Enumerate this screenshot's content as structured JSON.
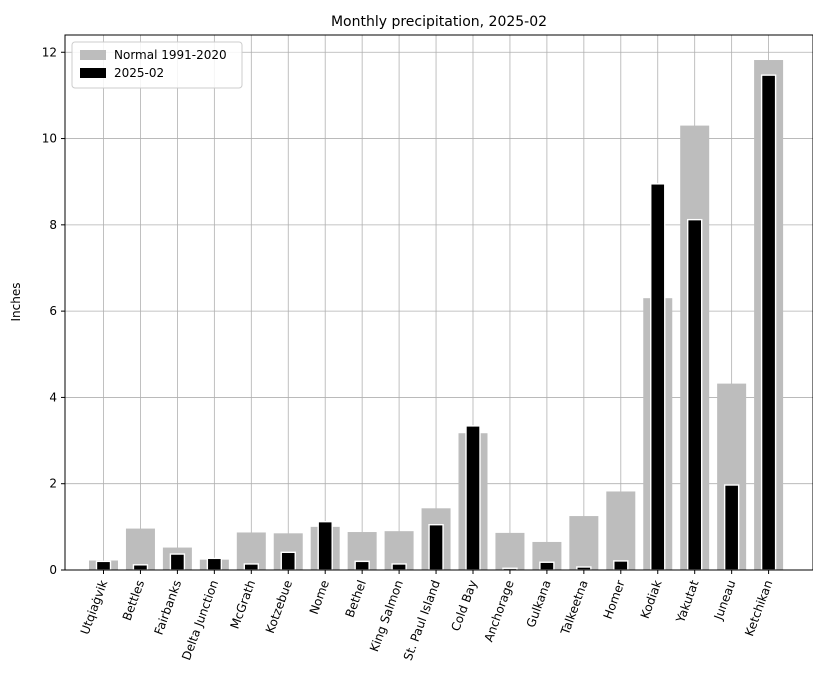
{
  "chart_data": {
    "type": "bar",
    "title": "Monthly precipitation, 2025-02",
    "ylabel": "Inches",
    "xlabel": "",
    "ylim": [
      0,
      12.4
    ],
    "yticks": [
      0,
      2,
      4,
      6,
      8,
      10,
      12
    ],
    "grid": true,
    "legend_position": "top-left",
    "categories": [
      "Utqiaġvik",
      "Bettles",
      "Fairbanks",
      "Delta Junction",
      "McGrath",
      "Kotzebue",
      "Nome",
      "Bethel",
      "King Salmon",
      "St. Paul Island",
      "Cold Bay",
      "Anchorage",
      "Gulkana",
      "Talkeetna",
      "Homer",
      "Kodiak",
      "Yakutat",
      "Juneau",
      "Ketchikan"
    ],
    "series": [
      {
        "name": "Normal 1991-2020",
        "color": "#bdbdbd",
        "values": [
          0.22,
          0.96,
          0.52,
          0.24,
          0.87,
          0.85,
          1.0,
          0.88,
          0.9,
          1.43,
          3.17,
          0.86,
          0.65,
          1.25,
          1.82,
          6.3,
          10.3,
          4.32,
          11.82
        ]
      },
      {
        "name": "2025-02",
        "color": "#000000",
        "values": [
          0.2,
          0.12,
          0.37,
          0.27,
          0.14,
          0.41,
          1.12,
          0.2,
          0.14,
          1.05,
          3.34,
          0.04,
          0.18,
          0.07,
          0.21,
          8.95,
          8.12,
          1.97,
          11.47
        ]
      }
    ]
  }
}
